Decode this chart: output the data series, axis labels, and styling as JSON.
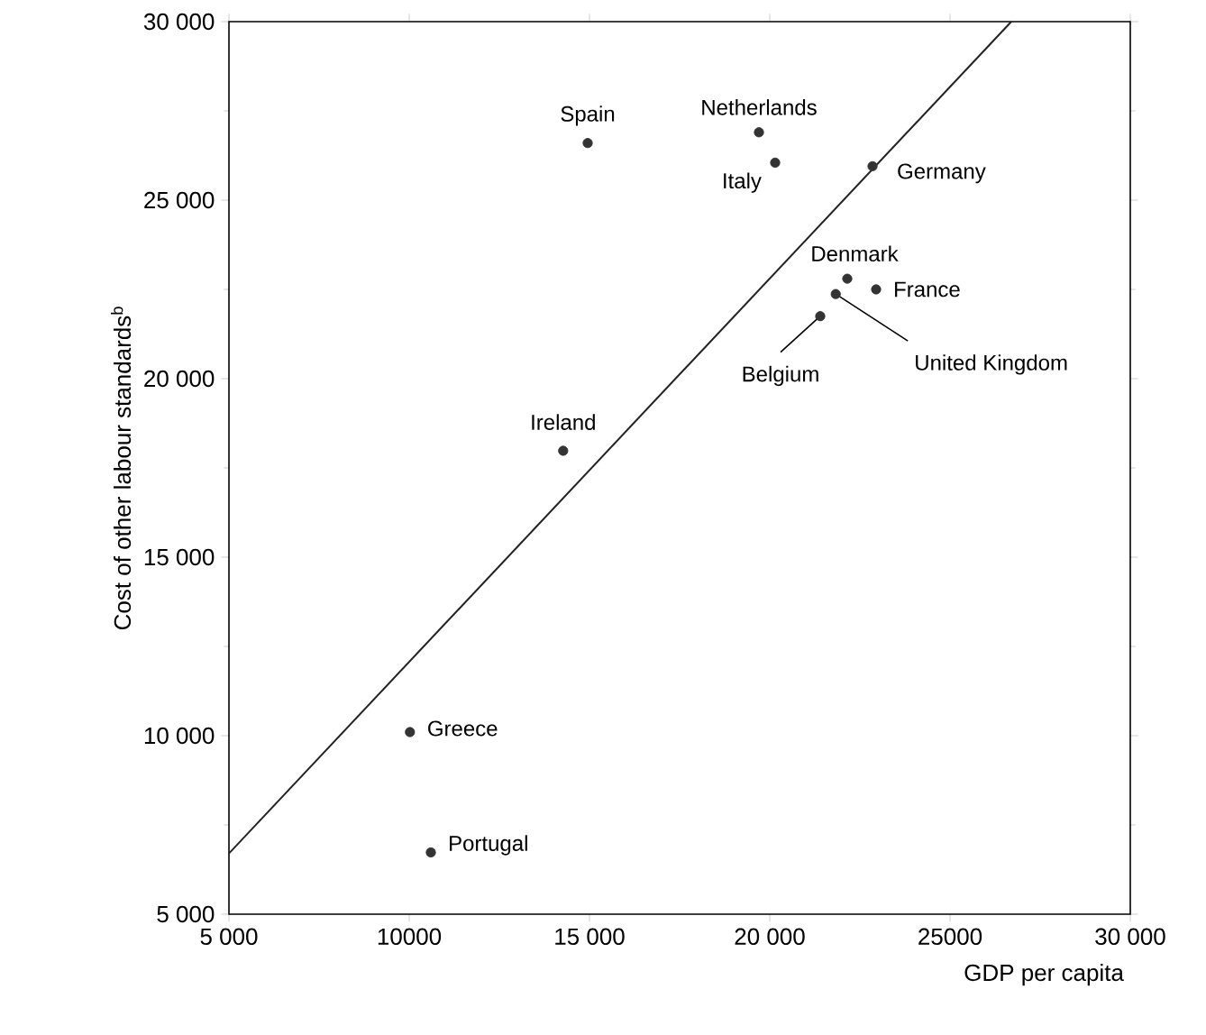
{
  "chart_data": {
    "type": "scatter",
    "xlabel": "GDP per capita",
    "ylabel": "Cost of other labour standards$^{b}$",
    "xlim": [
      5000,
      30000
    ],
    "ylim": [
      5000,
      30000
    ],
    "xticks": [
      {
        "value": 5000,
        "label": "5 000"
      },
      {
        "value": 10000,
        "label": "10000"
      },
      {
        "value": 15000,
        "label": "15 000"
      },
      {
        "value": 20000,
        "label": "20 000"
      },
      {
        "value": 25000,
        "label": "25000"
      },
      {
        "value": 30000,
        "label": "30 000"
      }
    ],
    "yticks": [
      {
        "value": 5000,
        "label": "5 000"
      },
      {
        "value": 10000,
        "label": "10 000"
      },
      {
        "value": 15000,
        "label": "15 000"
      },
      {
        "value": 20000,
        "label": "20 000"
      },
      {
        "value": 25000,
        "label": "25 000"
      },
      {
        "value": 30000,
        "label": "30 000"
      }
    ],
    "marker": "circle",
    "series": [
      {
        "color": "#333333",
        "x": [
          14950,
          19700,
          20150,
          22850,
          22150,
          22950,
          21830,
          21400,
          14270,
          10020,
          10600
        ],
        "values": [
          26600,
          26900,
          26050,
          25950,
          22800,
          22500,
          22370,
          21750,
          17980,
          10100,
          6730
        ]
      },
      {
        "type": "line",
        "color": "#222222",
        "marker": "none",
        "x": [
          5000,
          26700
        ],
        "values": [
          6700,
          30000
        ]
      }
    ],
    "annotations": [
      {
        "text": "Spain",
        "x": 14950,
        "y": 26600
      },
      {
        "text": "Netherlands",
        "x": 19700,
        "y": 26900
      },
      {
        "text": "Italy",
        "x": 20150,
        "y": 26050
      },
      {
        "text": "Germany",
        "x": 22850,
        "y": 25950
      },
      {
        "text": "Denmark",
        "x": 22150,
        "y": 22800
      },
      {
        "text": "France",
        "x": 22950,
        "y": 22500
      },
      {
        "text": "United Kingdom",
        "x": 21830,
        "y": 22370
      },
      {
        "text": "Belgium",
        "x": 21400,
        "y": 21750
      },
      {
        "text": "Ireland",
        "x": 14270,
        "y": 17980
      },
      {
        "text": "Greece",
        "x": 10020,
        "y": 10100
      },
      {
        "text": "Portugal",
        "x": 10600,
        "y": 6730
      }
    ]
  }
}
